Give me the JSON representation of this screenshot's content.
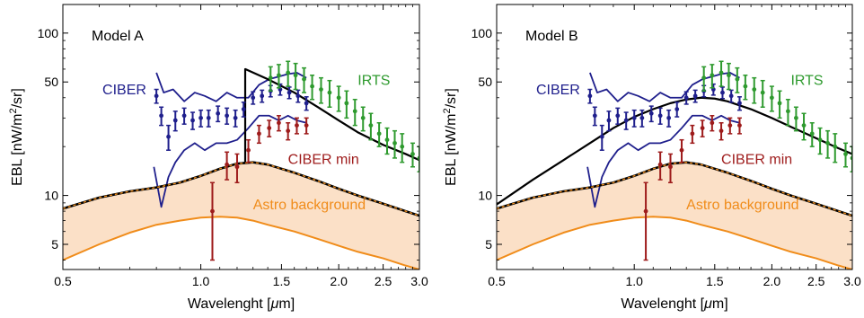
{
  "chart_data": [
    {
      "type": "line",
      "title": "Model A",
      "xlabel_parts": [
        "Wavelenght [",
        "μ",
        "m]"
      ],
      "ylabel_parts": [
        "EBL [nW/m",
        "2",
        "/sr]"
      ],
      "xscale": "log",
      "yscale": "log",
      "xlim": [
        0.5,
        3.0
      ],
      "ylim": [
        3.5,
        150
      ],
      "xticks": [
        0.5,
        1.0,
        1.5,
        2.0,
        2.5,
        3.0
      ],
      "xtick_labels": [
        "0.5",
        "1.0",
        "1.5",
        "2.0",
        "2.5",
        "3.0"
      ],
      "yticks": [
        5,
        10,
        50,
        100
      ],
      "ytick_labels": [
        "5",
        "10",
        "50",
        "100"
      ],
      "grid": false,
      "labels": {
        "ciber": "CIBER",
        "irts": "IRTS",
        "ciber_min": "CIBER min",
        "astro": "Astro background"
      },
      "colors": {
        "ciber": "#1f1f8c",
        "irts": "#2e9a2e",
        "ciber_min": "#9e1b1b",
        "astro_line": "#f08c1a",
        "astro_fill": "#fbe0c7",
        "model": "#000000"
      },
      "series": [
        {
          "name": "CIBER",
          "kind": "errorbar",
          "x": [
            0.8,
            0.82,
            0.85,
            0.88,
            0.92,
            0.96,
            1.0,
            1.04,
            1.09,
            1.14,
            1.19,
            1.24,
            1.3,
            1.36,
            1.42,
            1.49,
            1.56,
            1.63,
            1.7
          ],
          "y": [
            41,
            31,
            23,
            29,
            31,
            29,
            30,
            30,
            32,
            31,
            30,
            34,
            40,
            41,
            44,
            45,
            43,
            41,
            37
          ],
          "yerr": [
            4,
            4,
            4,
            4,
            3.5,
            3.5,
            3.5,
            3.5,
            3.5,
            3.5,
            3.5,
            3.5,
            3.5,
            3.5,
            3.5,
            3.5,
            3.5,
            3.5,
            3.5
          ]
        },
        {
          "name": "CIBER upper",
          "kind": "line",
          "x": [
            0.8,
            0.83,
            0.87,
            0.92,
            0.97,
            1.02,
            1.08,
            1.14,
            1.2,
            1.27,
            1.34,
            1.41,
            1.48,
            1.55,
            1.62,
            1.7
          ],
          "y": [
            57,
            43,
            45,
            38,
            43,
            41,
            38,
            43,
            40,
            40,
            48,
            52,
            54,
            56,
            57,
            53
          ]
        },
        {
          "name": "CIBER lower",
          "kind": "line",
          "x": [
            0.79,
            0.82,
            0.85,
            0.88,
            0.92,
            0.97,
            1.02,
            1.08,
            1.14,
            1.2,
            1.27,
            1.34,
            1.41,
            1.48,
            1.55,
            1.62,
            1.7
          ],
          "y": [
            15,
            8.5,
            13,
            16,
            19,
            21,
            19,
            21,
            21,
            22,
            26,
            31,
            31,
            29,
            31,
            29,
            28
          ]
        },
        {
          "name": "IRTS",
          "kind": "errorbar",
          "x": [
            1.42,
            1.48,
            1.55,
            1.61,
            1.68,
            1.75,
            1.83,
            1.91,
            2.0,
            2.08,
            2.17,
            2.26,
            2.35,
            2.45,
            2.55,
            2.65,
            2.75,
            2.9,
            3.0
          ],
          "y": [
            53,
            55,
            57,
            55,
            52,
            47,
            45,
            43,
            40,
            37,
            33,
            30,
            27,
            24,
            22,
            21,
            20,
            18,
            17
          ],
          "yerr": [
            9,
            9,
            10,
            10,
            9,
            8,
            8,
            8,
            7,
            7,
            6,
            5,
            5,
            4,
            4,
            4,
            4,
            3,
            3
          ]
        },
        {
          "name": "CIBER min",
          "kind": "errorbar",
          "x": [
            1.06,
            1.14,
            1.2,
            1.27,
            1.34,
            1.41,
            1.48,
            1.55,
            1.62,
            1.7
          ],
          "y": [
            8,
            15.5,
            15,
            19,
            24,
            26,
            28,
            25,
            27,
            27
          ],
          "yerr": [
            4,
            3,
            3,
            3,
            3,
            3,
            3,
            3,
            3,
            3
          ]
        },
        {
          "name": "Astro lower",
          "kind": "line",
          "x": [
            0.5,
            0.6,
            0.7,
            0.8,
            0.9,
            1.0,
            1.1,
            1.2,
            1.3,
            1.4,
            1.6,
            1.8,
            2.0,
            2.2,
            2.5,
            2.8,
            3.0
          ],
          "y": [
            4.0,
            5.0,
            5.9,
            6.6,
            7.0,
            7.3,
            7.4,
            7.3,
            7.0,
            6.6,
            6.0,
            5.4,
            4.9,
            4.5,
            4.1,
            3.7,
            3.5
          ]
        },
        {
          "name": "Astro upper",
          "kind": "line",
          "x": [
            0.5,
            0.6,
            0.7,
            0.8,
            0.9,
            1.0,
            1.1,
            1.2,
            1.3,
            1.4,
            1.6,
            1.8,
            2.0,
            2.2,
            2.5,
            2.8,
            3.0
          ],
          "y": [
            8.3,
            9.7,
            10.6,
            11.2,
            12.0,
            13.2,
            14.6,
            15.7,
            16.0,
            15.5,
            13.8,
            12.3,
            11.0,
            10.0,
            8.9,
            8.0,
            7.5
          ]
        },
        {
          "name": "Model",
          "kind": "line",
          "x": [
            0.5,
            0.6,
            0.7,
            0.8,
            0.9,
            1.0,
            1.1,
            1.2,
            1.25,
            1.25,
            1.4,
            1.6,
            1.8,
            2.0,
            2.2,
            2.5,
            2.8,
            3.0
          ],
          "y": [
            8.3,
            9.7,
            10.6,
            11.2,
            12.0,
            13.2,
            14.6,
            15.7,
            15.9,
            60,
            52,
            43,
            35,
            29,
            24.5,
            20.5,
            18,
            16.5
          ]
        }
      ]
    },
    {
      "type": "line",
      "title": "Model B",
      "xlabel_parts": [
        "Wavelenght [",
        "μ",
        "m]"
      ],
      "ylabel_parts": [
        "EBL [nW/m",
        "2",
        "/sr]"
      ],
      "xscale": "log",
      "yscale": "log",
      "xlim": [
        0.5,
        3.0
      ],
      "ylim": [
        3.5,
        150
      ],
      "xticks": [
        0.5,
        1.0,
        1.5,
        2.0,
        2.5,
        3.0
      ],
      "xtick_labels": [
        "0.5",
        "1.0",
        "1.5",
        "2.0",
        "2.5",
        "3.0"
      ],
      "yticks": [
        5,
        10,
        50,
        100
      ],
      "ytick_labels": [
        "5",
        "10",
        "50",
        "100"
      ],
      "grid": false,
      "labels": {
        "ciber": "CIBER",
        "irts": "IRTS",
        "ciber_min": "CIBER min",
        "astro": "Astro background"
      },
      "colors": {
        "ciber": "#1f1f8c",
        "irts": "#2e9a2e",
        "ciber_min": "#9e1b1b",
        "astro_line": "#f08c1a",
        "astro_fill": "#fbe0c7",
        "model": "#000000"
      },
      "series": [
        {
          "name": "CIBER",
          "kind": "errorbar",
          "x": [
            0.8,
            0.82,
            0.85,
            0.88,
            0.92,
            0.96,
            1.0,
            1.04,
            1.09,
            1.14,
            1.19,
            1.24,
            1.3,
            1.36,
            1.42,
            1.49,
            1.56,
            1.63,
            1.7
          ],
          "y": [
            41,
            31,
            23,
            29,
            31,
            29,
            30,
            30,
            32,
            31,
            30,
            34,
            40,
            41,
            44,
            45,
            43,
            41,
            37
          ],
          "yerr": [
            4,
            4,
            4,
            4,
            3.5,
            3.5,
            3.5,
            3.5,
            3.5,
            3.5,
            3.5,
            3.5,
            3.5,
            3.5,
            3.5,
            3.5,
            3.5,
            3.5,
            3.5
          ]
        },
        {
          "name": "CIBER upper",
          "kind": "line",
          "x": [
            0.8,
            0.83,
            0.87,
            0.92,
            0.97,
            1.02,
            1.08,
            1.14,
            1.2,
            1.27,
            1.34,
            1.41,
            1.48,
            1.55,
            1.62,
            1.7
          ],
          "y": [
            57,
            43,
            45,
            38,
            43,
            41,
            38,
            43,
            40,
            40,
            48,
            52,
            54,
            56,
            57,
            53
          ]
        },
        {
          "name": "CIBER lower",
          "kind": "line",
          "x": [
            0.79,
            0.82,
            0.85,
            0.88,
            0.92,
            0.97,
            1.02,
            1.08,
            1.14,
            1.2,
            1.27,
            1.34,
            1.41,
            1.48,
            1.55,
            1.62,
            1.7
          ],
          "y": [
            15,
            8.5,
            13,
            16,
            19,
            21,
            19,
            21,
            21,
            22,
            26,
            31,
            31,
            29,
            31,
            29,
            28
          ]
        },
        {
          "name": "IRTS",
          "kind": "errorbar",
          "x": [
            1.42,
            1.48,
            1.55,
            1.61,
            1.68,
            1.75,
            1.83,
            1.91,
            2.0,
            2.08,
            2.17,
            2.26,
            2.35,
            2.45,
            2.55,
            2.65,
            2.75,
            2.9,
            3.0
          ],
          "y": [
            53,
            55,
            57,
            55,
            52,
            47,
            45,
            43,
            40,
            37,
            33,
            30,
            27,
            24,
            22,
            21,
            20,
            18,
            17
          ],
          "yerr": [
            9,
            9,
            10,
            10,
            9,
            8,
            8,
            8,
            7,
            7,
            6,
            5,
            5,
            4,
            4,
            4,
            4,
            3,
            3
          ]
        },
        {
          "name": "CIBER min",
          "kind": "errorbar",
          "x": [
            1.06,
            1.14,
            1.2,
            1.27,
            1.34,
            1.41,
            1.48,
            1.55,
            1.62,
            1.7
          ],
          "y": [
            8,
            15.5,
            15,
            19,
            24,
            26,
            28,
            25,
            27,
            27
          ],
          "yerr": [
            4,
            3,
            3,
            3,
            3,
            3,
            3,
            3,
            3,
            3
          ]
        },
        {
          "name": "Astro lower",
          "kind": "line",
          "x": [
            0.5,
            0.6,
            0.7,
            0.8,
            0.9,
            1.0,
            1.1,
            1.2,
            1.3,
            1.4,
            1.6,
            1.8,
            2.0,
            2.2,
            2.5,
            2.8,
            3.0
          ],
          "y": [
            4.0,
            5.0,
            5.9,
            6.6,
            7.0,
            7.3,
            7.4,
            7.3,
            7.0,
            6.6,
            6.0,
            5.4,
            4.9,
            4.5,
            4.1,
            3.7,
            3.5
          ]
        },
        {
          "name": "Astro upper",
          "kind": "line",
          "x": [
            0.5,
            0.6,
            0.7,
            0.8,
            0.9,
            1.0,
            1.1,
            1.2,
            1.3,
            1.4,
            1.6,
            1.8,
            2.0,
            2.2,
            2.5,
            2.8,
            3.0
          ],
          "y": [
            8.3,
            9.7,
            10.6,
            11.2,
            12.0,
            13.2,
            14.6,
            15.7,
            16.0,
            15.5,
            13.8,
            12.3,
            11.0,
            10.0,
            8.9,
            8.0,
            7.5
          ]
        },
        {
          "name": "Model",
          "kind": "line",
          "x": [
            0.5,
            0.6,
            0.7,
            0.8,
            0.9,
            1.0,
            1.1,
            1.2,
            1.3,
            1.4,
            1.5,
            1.6,
            1.8,
            2.0,
            2.2,
            2.5,
            2.8,
            3.0
          ],
          "y": [
            8.8,
            12.5,
            16.5,
            21,
            26,
            30.5,
            34,
            37,
            39,
            40,
            39.5,
            38,
            34,
            30,
            26.5,
            22.5,
            19.5,
            18
          ]
        }
      ]
    }
  ]
}
